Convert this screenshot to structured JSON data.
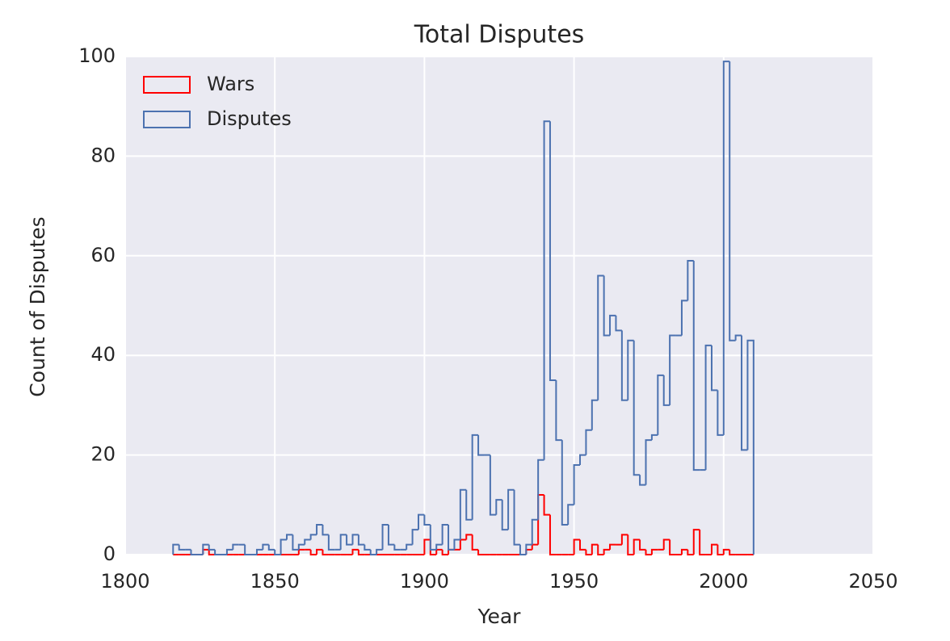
{
  "chart_data": {
    "type": "histogram",
    "title": "Total Disputes",
    "x_label": "Year",
    "y_label": "Count of Disputes",
    "bins": [
      1816,
      1818,
      1820,
      1822,
      1824,
      1826,
      1828,
      1830,
      1832,
      1834,
      1836,
      1838,
      1840,
      1842,
      1844,
      1846,
      1848,
      1850,
      1852,
      1854,
      1856,
      1858,
      1860,
      1862,
      1864,
      1866,
      1868,
      1870,
      1872,
      1874,
      1876,
      1878,
      1880,
      1882,
      1884,
      1886,
      1888,
      1890,
      1892,
      1894,
      1896,
      1898,
      1900,
      1902,
      1904,
      1906,
      1908,
      1910,
      1912,
      1914,
      1916,
      1918,
      1920,
      1922,
      1924,
      1926,
      1928,
      1930,
      1932,
      1934,
      1936,
      1938,
      1940,
      1942,
      1944,
      1946,
      1948,
      1950,
      1952,
      1954,
      1956,
      1958,
      1960,
      1962,
      1964,
      1966,
      1968,
      1970,
      1972,
      1974,
      1976,
      1978,
      1980,
      1982,
      1984,
      1986,
      1988,
      1990,
      1992,
      1994,
      1996,
      1998,
      2000,
      2002,
      2004,
      2006,
      2008,
      2010
    ],
    "series": [
      {
        "name": "Wars",
        "color": "#ff0000",
        "values": [
          0,
          0,
          0,
          0,
          0,
          1,
          0,
          0,
          0,
          0,
          0,
          0,
          0,
          0,
          0,
          0,
          0,
          0,
          0,
          0,
          0,
          1,
          1,
          0,
          1,
          0,
          0,
          0,
          0,
          0,
          1,
          0,
          0,
          0,
          0,
          0,
          0,
          0,
          0,
          0,
          0,
          0,
          3,
          0,
          1,
          0,
          1,
          1,
          3,
          4,
          1,
          0,
          0,
          0,
          0,
          0,
          0,
          0,
          0,
          1,
          2,
          12,
          8,
          0,
          0,
          0,
          0,
          3,
          1,
          0,
          2,
          0,
          1,
          2,
          2,
          4,
          0,
          3,
          1,
          0,
          1,
          1,
          3,
          0,
          0,
          1,
          0,
          5,
          0,
          0,
          2,
          0,
          1,
          0,
          0,
          0,
          0
        ]
      },
      {
        "name": "Disputes",
        "color": "#4c72b0",
        "values": [
          2,
          1,
          1,
          0,
          0,
          2,
          1,
          0,
          0,
          1,
          2,
          2,
          0,
          0,
          1,
          2,
          1,
          0,
          3,
          4,
          1,
          2,
          3,
          4,
          6,
          4,
          1,
          1,
          4,
          2,
          4,
          2,
          1,
          0,
          1,
          6,
          2,
          1,
          1,
          2,
          5,
          8,
          6,
          1,
          2,
          6,
          1,
          3,
          13,
          7,
          24,
          20,
          20,
          8,
          11,
          5,
          13,
          2,
          0,
          2,
          7,
          19,
          87,
          35,
          23,
          6,
          10,
          18,
          20,
          25,
          31,
          56,
          44,
          48,
          45,
          31,
          43,
          16,
          14,
          23,
          24,
          36,
          30,
          44,
          44,
          51,
          59,
          17,
          17,
          42,
          33,
          24,
          99,
          43,
          44,
          21,
          43
        ]
      }
    ],
    "xlim": [
      1800,
      2050
    ],
    "xticks": [
      1800,
      1850,
      1900,
      1950,
      2000,
      2050
    ],
    "ylim": [
      0,
      100
    ],
    "yticks": [
      0,
      20,
      40,
      60,
      80,
      100
    ],
    "grid": true,
    "legend": "upper-left"
  }
}
